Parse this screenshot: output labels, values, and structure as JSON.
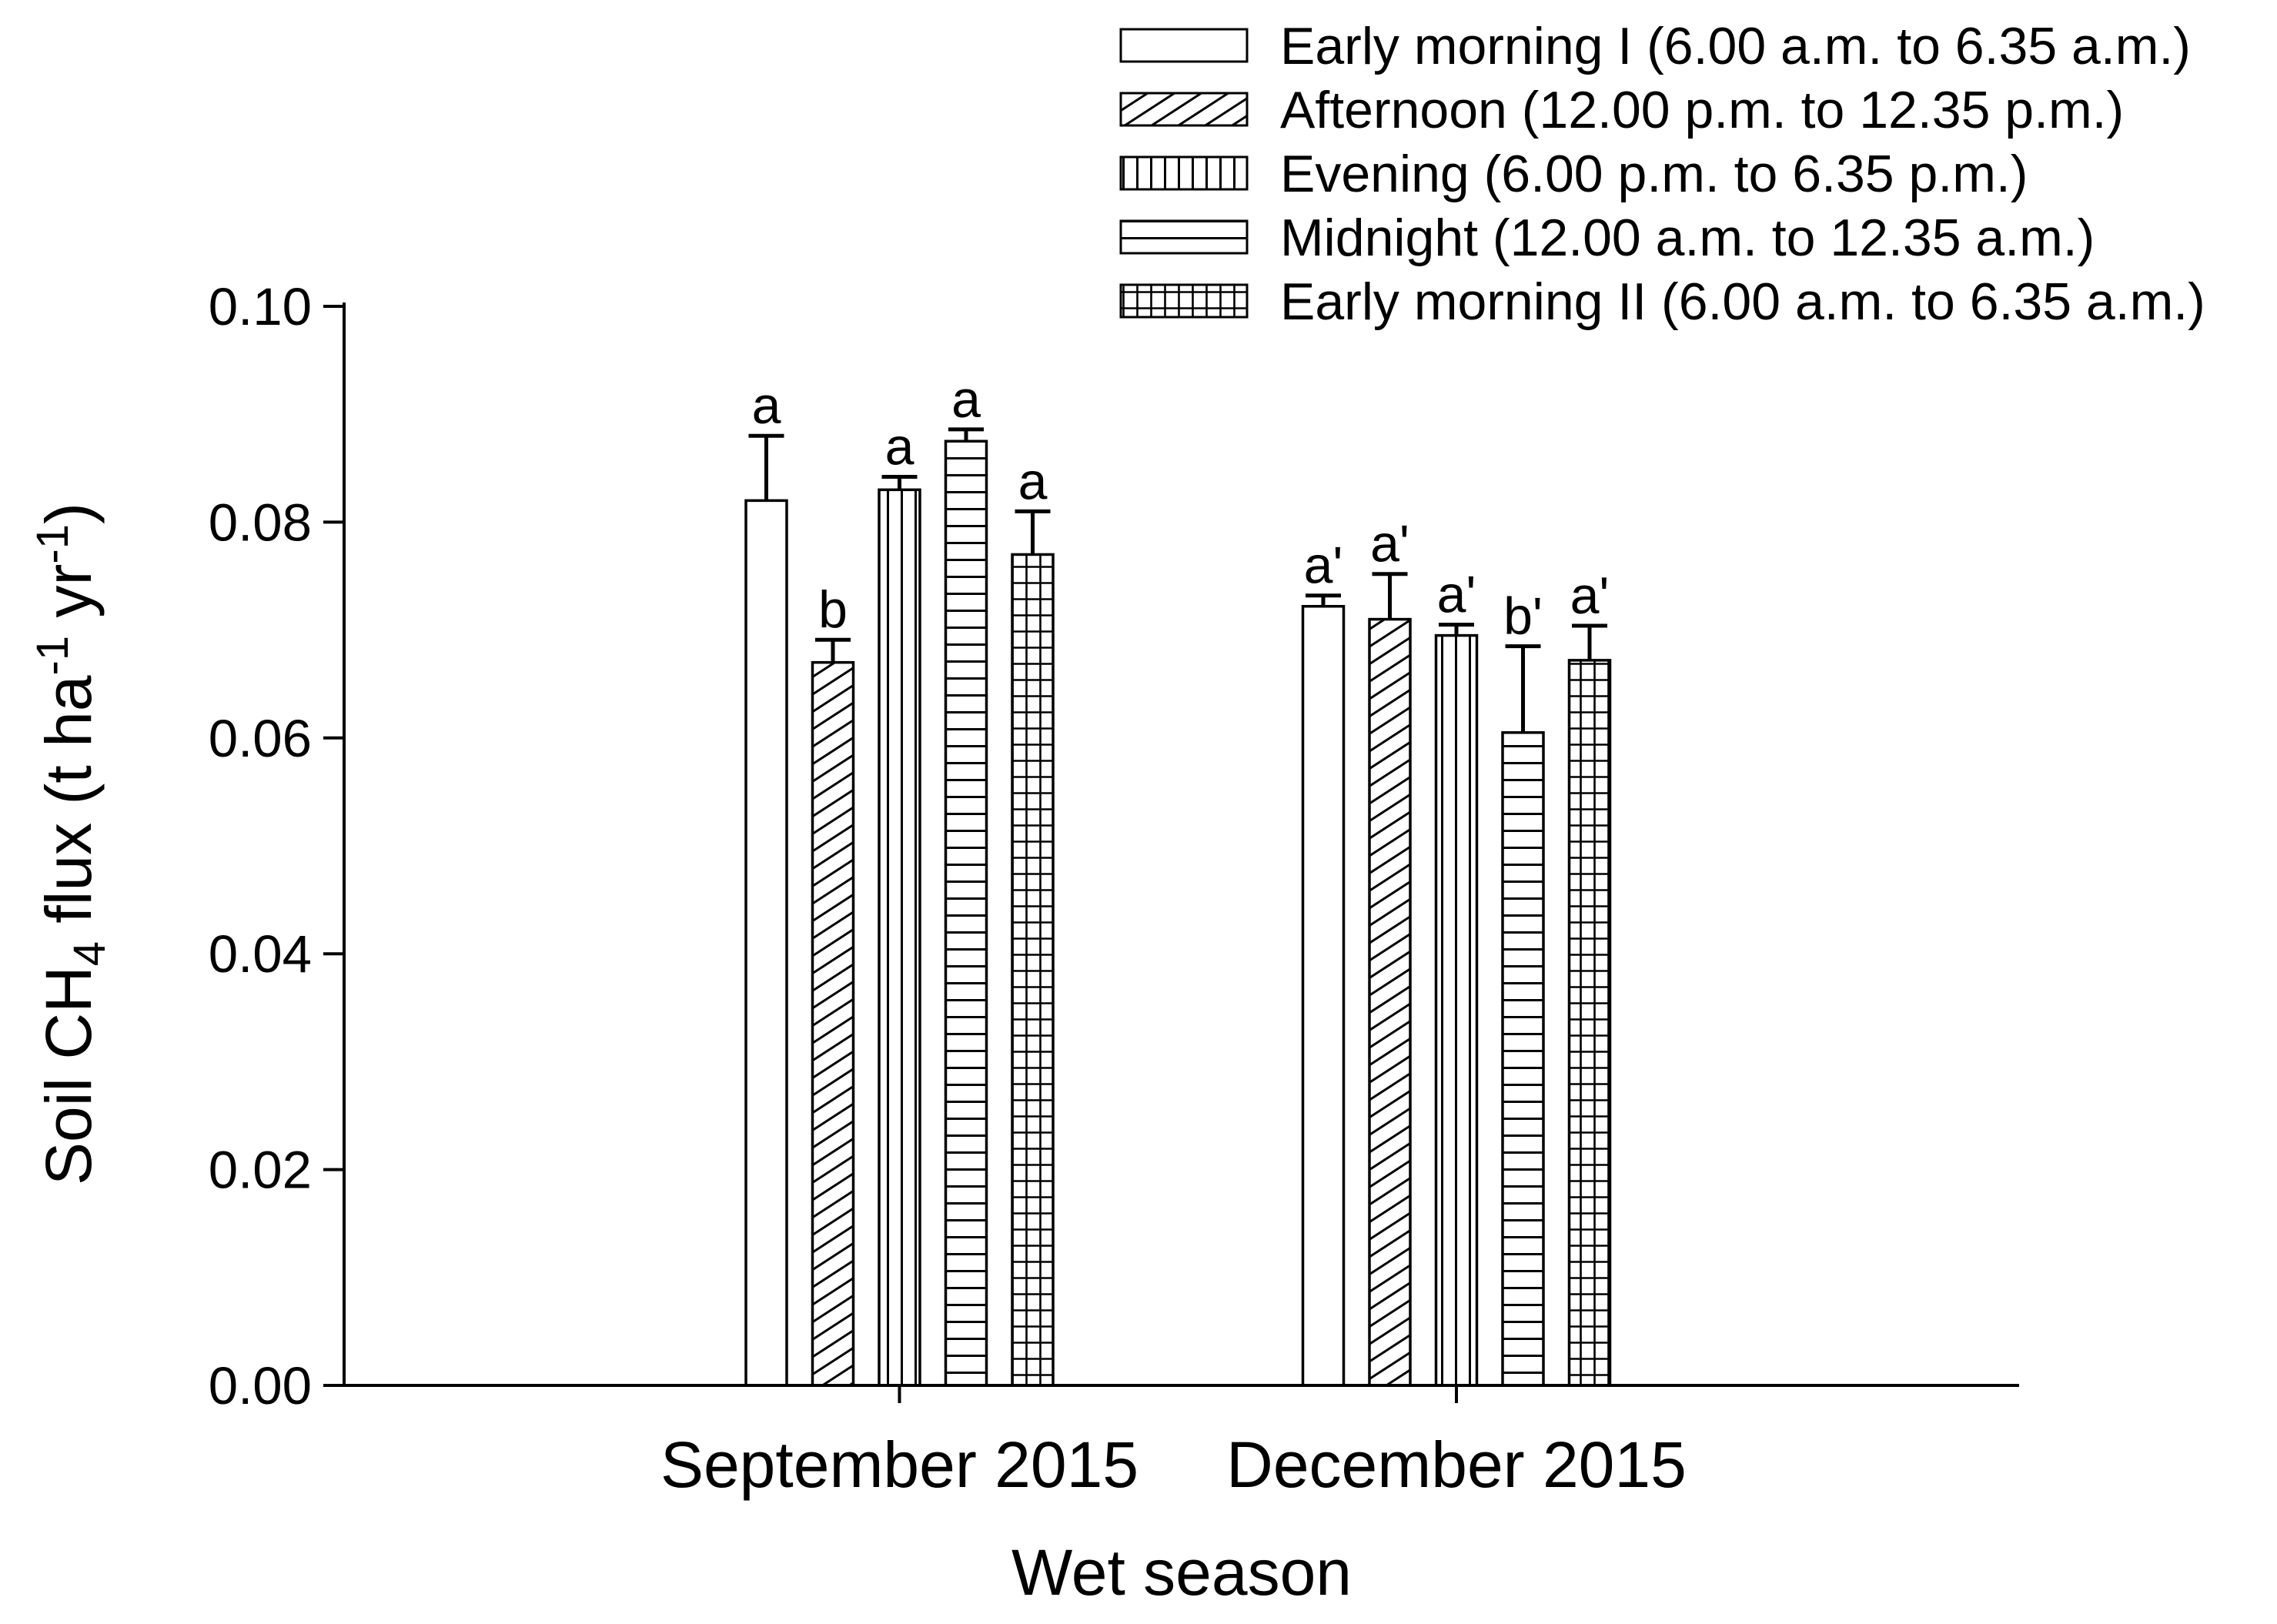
{
  "chart_data": {
    "type": "bar",
    "title": "",
    "xlabel": "Wet season",
    "ylabel": "Soil CH4 flux (t ha-1 yr-1)",
    "ylabel_rich": [
      {
        "text": "Soil CH",
        "script": "normal"
      },
      {
        "text": "4",
        "script": "sub"
      },
      {
        "text": " flux (t ha",
        "script": "normal"
      },
      {
        "text": "-1",
        "script": "super"
      },
      {
        "text": " yr",
        "script": "normal"
      },
      {
        "text": "-1",
        "script": "super"
      },
      {
        "text": ")",
        "script": "normal"
      }
    ],
    "categories": [
      "September 2015",
      "December 2015"
    ],
    "ylim": [
      0,
      0.1
    ],
    "y_tick_values": [
      0.0,
      0.02,
      0.04,
      0.06,
      0.08,
      0.1
    ],
    "y_tick_labels": [
      "0.00",
      "0.02",
      "0.04",
      "0.06",
      "0.08",
      "0.10"
    ],
    "grid": false,
    "legend_position": "top-right",
    "bar_fill": "#ffffff",
    "line_color": "#000000",
    "series": [
      {
        "name": "Early morning I (6.00 a.m. to 6.35 a.m.)",
        "pattern": "plain",
        "values": [
          0.082,
          0.0722
        ],
        "errors": [
          0.006,
          0.001
        ],
        "letters": [
          "a",
          "a'"
        ]
      },
      {
        "name": "Afternoon (12.00 p.m. to 12.35 p.m.)",
        "pattern": "diagonal-hatch",
        "values": [
          0.067,
          0.071
        ],
        "errors": [
          0.0021,
          0.0042
        ],
        "letters": [
          "b",
          "a'"
        ]
      },
      {
        "name": "Evening (6.00 p.m. to 6.35 p.m.)",
        "pattern": "vertical-lines",
        "values": [
          0.083,
          0.0695
        ],
        "errors": [
          0.0012,
          0.001
        ],
        "letters": [
          "a",
          "a'"
        ]
      },
      {
        "name": "Midnight (12.00 a.m. to 12.35 a.m.)",
        "pattern": "horizontal-lines",
        "values": [
          0.0875,
          0.0605
        ],
        "errors": [
          0.0011,
          0.008
        ],
        "letters": [
          "a",
          "b'"
        ]
      },
      {
        "name": "Early morning II (6.00 a.m. to 6.35 a.m.)",
        "pattern": "grid",
        "values": [
          0.077,
          0.0672
        ],
        "errors": [
          0.004,
          0.0032
        ],
        "letters": [
          "a",
          "a'"
        ]
      }
    ]
  }
}
